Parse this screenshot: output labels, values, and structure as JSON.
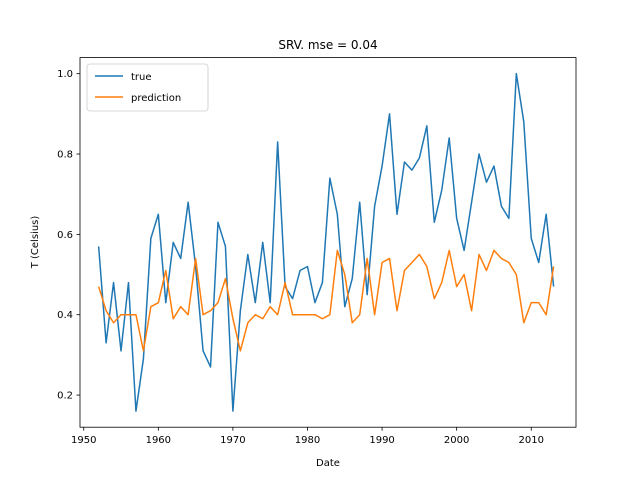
{
  "chart_data": {
    "type": "line",
    "title": "SRV. mse = 0.04",
    "xlabel": "Date",
    "ylabel": "T (Celsius)",
    "xlim": [
      1949.5,
      2016
    ],
    "ylim": [
      0.12,
      1.04
    ],
    "xticks": [
      1950,
      1960,
      1970,
      1980,
      1990,
      2000,
      2010
    ],
    "yticks": [
      0.2,
      0.4,
      0.6,
      0.8,
      1.0
    ],
    "ytick_labels": [
      "0.2",
      "0.4",
      "0.6",
      "0.8",
      "1.0"
    ],
    "legend_position": "upper-left",
    "x": [
      1952,
      1953,
      1954,
      1955,
      1956,
      1957,
      1958,
      1959,
      1960,
      1961,
      1962,
      1963,
      1964,
      1965,
      1966,
      1967,
      1968,
      1969,
      1970,
      1971,
      1972,
      1973,
      1974,
      1975,
      1976,
      1977,
      1978,
      1979,
      1980,
      1981,
      1982,
      1983,
      1984,
      1985,
      1986,
      1987,
      1988,
      1989,
      1990,
      1991,
      1992,
      1993,
      1994,
      1995,
      1996,
      1997,
      1998,
      1999,
      2000,
      2001,
      2002,
      2003,
      2004,
      2005,
      2006,
      2007,
      2008,
      2009,
      2010,
      2011,
      2012,
      2013
    ],
    "series": [
      {
        "name": "true",
        "color": "#1f77b4",
        "values": [
          0.57,
          0.33,
          0.48,
          0.31,
          0.48,
          0.16,
          0.29,
          0.59,
          0.65,
          0.43,
          0.58,
          0.54,
          0.68,
          0.52,
          0.31,
          0.27,
          0.63,
          0.57,
          0.16,
          0.41,
          0.55,
          0.43,
          0.58,
          0.43,
          0.83,
          0.47,
          0.44,
          0.51,
          0.52,
          0.43,
          0.48,
          0.74,
          0.65,
          0.42,
          0.49,
          0.68,
          0.45,
          0.67,
          0.77,
          0.9,
          0.65,
          0.78,
          0.76,
          0.79,
          0.87,
          0.63,
          0.71,
          0.84,
          0.64,
          0.56,
          0.68,
          0.8,
          0.73,
          0.77,
          0.67,
          0.64,
          1.0,
          0.88,
          0.59,
          0.53,
          0.65,
          0.47
        ]
      },
      {
        "name": "prediction",
        "color": "#ff7f0e",
        "values": [
          0.47,
          0.41,
          0.38,
          0.4,
          0.4,
          0.4,
          0.31,
          0.42,
          0.43,
          0.51,
          0.39,
          0.42,
          0.4,
          0.54,
          0.4,
          0.41,
          0.43,
          0.49,
          0.39,
          0.31,
          0.38,
          0.4,
          0.39,
          0.42,
          0.4,
          0.48,
          0.4,
          0.4,
          0.4,
          0.4,
          0.39,
          0.4,
          0.56,
          0.5,
          0.38,
          0.4,
          0.54,
          0.4,
          0.53,
          0.54,
          0.41,
          0.51,
          0.53,
          0.55,
          0.52,
          0.44,
          0.48,
          0.56,
          0.47,
          0.5,
          0.41,
          0.55,
          0.51,
          0.56,
          0.54,
          0.53,
          0.5,
          0.38,
          0.43,
          0.43,
          0.4,
          0.52
        ]
      }
    ]
  }
}
